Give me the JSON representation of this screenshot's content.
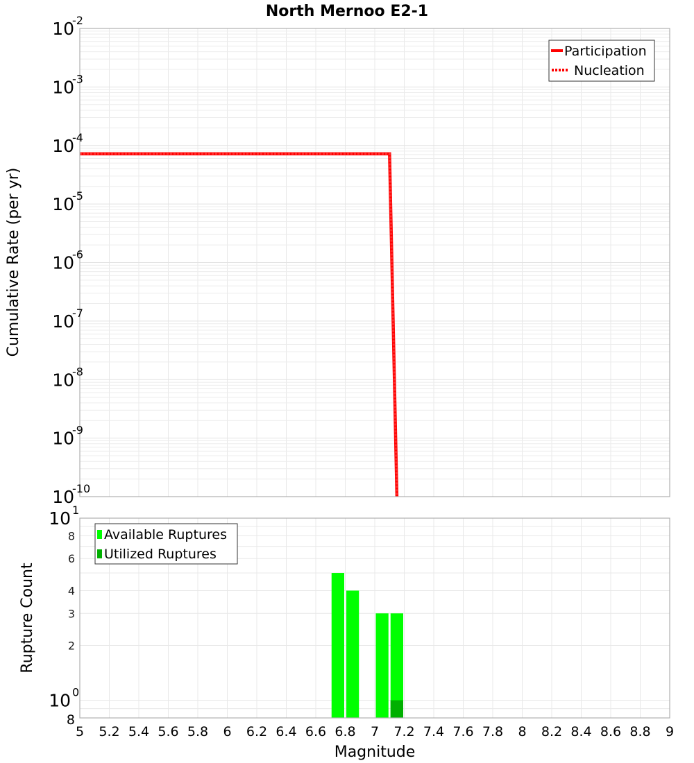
{
  "chart_data": [
    {
      "type": "line",
      "title": "North Mernoo E2-1",
      "xlabel": "Magnitude",
      "ylabel": "Cumulative Rate (per yr)",
      "xlim": [
        5,
        9
      ],
      "ylim": [
        1e-10,
        0.01
      ],
      "yscale": "log",
      "grid": true,
      "legend_position": "top-right",
      "legend": [
        "Participation",
        "Nucleation"
      ],
      "y_tick_labels": [
        "10^-2",
        "10^-3",
        "10^-4",
        "10^-5",
        "10^-6",
        "10^-7",
        "10^-8",
        "10^-9",
        "10^-10"
      ],
      "series": [
        {
          "name": "Participation",
          "style": "solid",
          "color": "#ff0000",
          "x": [
            5.0,
            7.1,
            7.15
          ],
          "y": [
            7.2e-05,
            7.2e-05,
            1e-10
          ]
        },
        {
          "name": "Nucleation",
          "style": "dotted",
          "color": "#ff0000",
          "x": [
            5.0,
            7.1,
            7.15
          ],
          "y": [
            7.2e-05,
            7.2e-05,
            1e-10
          ]
        }
      ]
    },
    {
      "type": "bar",
      "title": "",
      "xlabel": "Magnitude",
      "ylabel": "Rupture Count",
      "xlim": [
        5,
        9
      ],
      "ylim": [
        0.8,
        10
      ],
      "yscale": "log",
      "grid": true,
      "legend_position": "top-left",
      "legend": [
        "Available Ruptures",
        "Utilized Ruptures"
      ],
      "x_tick_labels": [
        "5",
        "5.2",
        "5.4",
        "5.6",
        "5.8",
        "6",
        "6.2",
        "6.4",
        "6.6",
        "6.8",
        "7",
        "7.2",
        "7.4",
        "7.6",
        "7.8",
        "8",
        "8.2",
        "8.4",
        "8.6",
        "8.8",
        "9"
      ],
      "y_tick_labels": [
        "10^1",
        "8",
        "6",
        "4",
        "3",
        "2",
        "10^0",
        "8"
      ],
      "bin_width": 0.1,
      "categories": [
        6.75,
        6.85,
        7.05,
        7.15
      ],
      "series": [
        {
          "name": "Available Ruptures",
          "color": "#00ff00",
          "values": [
            5,
            4,
            3,
            3
          ]
        },
        {
          "name": "Utilized Ruptures",
          "color": "#00b000",
          "values": [
            0,
            0,
            0,
            1
          ]
        }
      ]
    }
  ],
  "labels": {
    "title": "North Mernoo E2-1",
    "top_ylabel": "Cumulative Rate (per yr)",
    "bottom_ylabel": "Rupture Count",
    "xlabel": "Magnitude",
    "legend_top": [
      "Participation",
      "Nucleation"
    ],
    "legend_bottom": [
      "Available Ruptures",
      "Utilized Ruptures"
    ]
  }
}
